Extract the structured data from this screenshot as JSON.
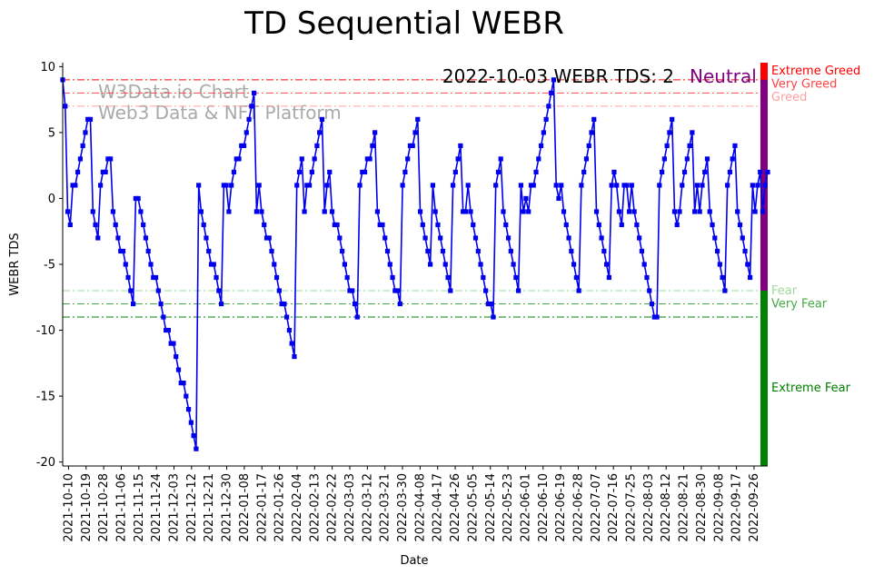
{
  "chart_data": {
    "type": "line",
    "title": "TD Sequential WEBR",
    "xlabel": "Date",
    "ylabel": "WEBR TDS",
    "annotation": "2022-10-03 WEBR TDS: 2",
    "status_label": "Neutral",
    "watermark_lines": [
      "W3Data.io Chart",
      "Web3 Data & NFT Platform"
    ],
    "ylim": [
      -20.3,
      10.3
    ],
    "yticks": [
      10,
      5,
      0,
      -5,
      -10,
      -15,
      -20
    ],
    "x_tick_labels": [
      "2021-10-10",
      "2021-10-19",
      "2021-10-28",
      "2021-11-06",
      "2021-11-15",
      "2021-11-24",
      "2021-12-03",
      "2021-12-12",
      "2021-12-21",
      "2021-12-30",
      "2022-01-08",
      "2022-01-17",
      "2022-01-26",
      "2022-02-04",
      "2022-02-13",
      "2022-02-22",
      "2022-03-03",
      "2022-03-12",
      "2022-03-21",
      "2022-03-30",
      "2022-04-08",
      "2022-04-17",
      "2022-04-26",
      "2022-05-05",
      "2022-05-14",
      "2022-05-23",
      "2022-06-01",
      "2022-06-10",
      "2022-06-19",
      "2022-06-28",
      "2022-07-07",
      "2022-07-16",
      "2022-07-25",
      "2022-08-03",
      "2022-08-12",
      "2022-08-21",
      "2022-08-30",
      "2022-09-08",
      "2022-09-17",
      "2022-09-26"
    ],
    "x_start": "2021-10-07",
    "x_end": "2022-10-03",
    "series_color": "#0000ee",
    "values": [
      9,
      7,
      -1,
      -2,
      1,
      1,
      2,
      3,
      4,
      5,
      6,
      6,
      -1,
      -2,
      -3,
      1,
      2,
      2,
      3,
      3,
      -1,
      -2,
      -3,
      -4,
      -4,
      -5,
      -6,
      -7,
      -8,
      0,
      0,
      -1,
      -2,
      -3,
      -4,
      -5,
      -6,
      -6,
      -7,
      -8,
      -9,
      -10,
      -10,
      -11,
      -11,
      -12,
      -13,
      -14,
      -14,
      -15,
      -16,
      -17,
      -18,
      -19,
      1,
      -1,
      -2,
      -3,
      -4,
      -5,
      -5,
      -6,
      -7,
      -8,
      1,
      1,
      -1,
      1,
      2,
      3,
      3,
      4,
      4,
      5,
      6,
      7,
      8,
      -1,
      1,
      -1,
      -2,
      -3,
      -3,
      -4,
      -5,
      -6,
      -7,
      -8,
      -8,
      -9,
      -10,
      -11,
      -12,
      1,
      2,
      3,
      -1,
      1,
      1,
      2,
      3,
      4,
      5,
      6,
      -1,
      1,
      2,
      -1,
      -2,
      -2,
      -3,
      -4,
      -5,
      -6,
      -7,
      -7,
      -8,
      -9,
      1,
      2,
      2,
      3,
      3,
      4,
      5,
      -1,
      -2,
      -2,
      -3,
      -4,
      -5,
      -6,
      -7,
      -7,
      -8,
      1,
      2,
      3,
      4,
      4,
      5,
      6,
      -1,
      -2,
      -3,
      -4,
      -5,
      1,
      -1,
      -2,
      -3,
      -4,
      -5,
      -6,
      -7,
      1,
      2,
      3,
      4,
      -1,
      -1,
      1,
      -1,
      -2,
      -3,
      -4,
      -5,
      -6,
      -7,
      -8,
      -8,
      -9,
      1,
      2,
      3,
      -1,
      -2,
      -3,
      -4,
      -5,
      -6,
      -7,
      1,
      -1,
      0,
      -1,
      1,
      1,
      2,
      3,
      4,
      5,
      6,
      7,
      8,
      9,
      1,
      0,
      1,
      -1,
      -2,
      -3,
      -4,
      -5,
      -6,
      -7,
      1,
      2,
      3,
      4,
      5,
      6,
      -1,
      -2,
      -3,
      -4,
      -5,
      -6,
      1,
      2,
      1,
      -1,
      -2,
      1,
      1,
      -1,
      1,
      -1,
      -2,
      -3,
      -4,
      -5,
      -6,
      -7,
      -8,
      -9,
      -9,
      1,
      2,
      3,
      4,
      5,
      6,
      -1,
      -2,
      -1,
      1,
      2,
      3,
      4,
      5,
      -1,
      1,
      -1,
      1,
      2,
      3,
      -1,
      -2,
      -3,
      -4,
      -5,
      -6,
      -7,
      1,
      2,
      3,
      4,
      -1,
      -2,
      -3,
      -4,
      -5,
      -6,
      1,
      -1,
      1,
      2,
      -1,
      1,
      2
    ],
    "thresholds": [
      {
        "value": 9,
        "label": "Extreme Greed",
        "color": "#ff0000"
      },
      {
        "value": 8,
        "label": "Very Greed",
        "color": "#ff4444"
      },
      {
        "value": 7,
        "label": "Greed",
        "color": "#ffa0a0"
      },
      {
        "value": -7,
        "label": "Fear",
        "color": "#9fd89f"
      },
      {
        "value": -8,
        "label": "Very Fear",
        "color": "#44aa44"
      },
      {
        "value": -9,
        "label": "Extreme Fear",
        "color": "#008000"
      }
    ],
    "side_bar": [
      {
        "from": 9,
        "to": 10.3,
        "color": "#ff0000"
      },
      {
        "from": -7,
        "to": 9,
        "color": "#800080"
      },
      {
        "from": -20.3,
        "to": -7,
        "color": "#008000"
      }
    ],
    "grid": false
  }
}
